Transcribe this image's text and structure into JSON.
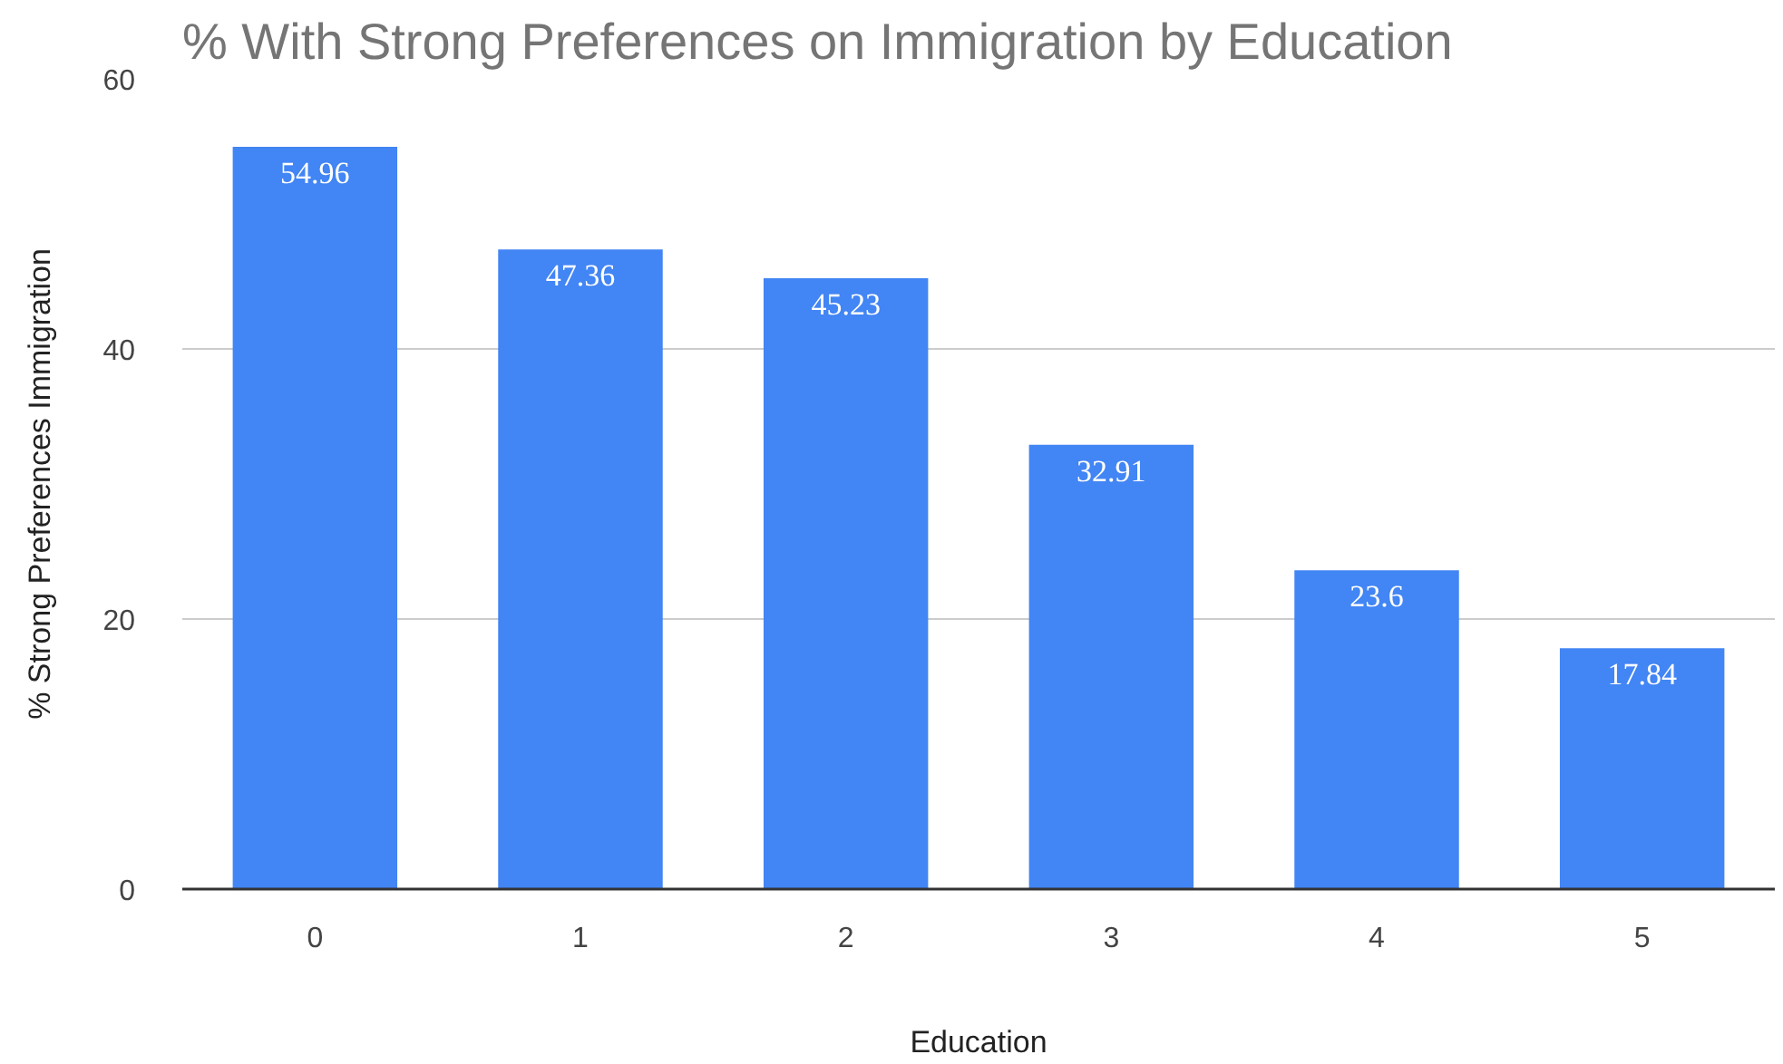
{
  "chart_data": {
    "type": "bar",
    "title": "% With Strong Preferences on Immigration by Education",
    "xlabel": "Education",
    "ylabel": "% Strong Preferences Immigration",
    "categories": [
      "0",
      "1",
      "2",
      "3",
      "4",
      "5"
    ],
    "values": [
      54.96,
      47.36,
      45.23,
      32.91,
      23.6,
      17.84
    ],
    "color": "#4285f4",
    "ylim": [
      0,
      60
    ],
    "yticks": [
      0,
      20,
      40,
      60
    ],
    "grid": "y",
    "data_labels": true
  }
}
